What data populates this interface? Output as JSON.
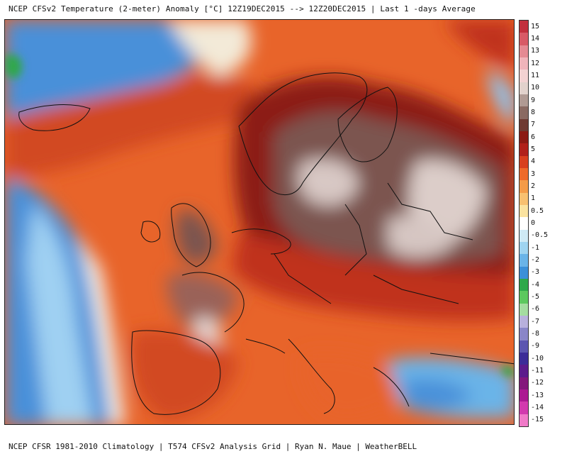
{
  "header": {
    "title": "NCEP CFSv2 Temperature (2-meter) Anomaly  [°C] 12Z19DEC2015 --> 12Z20DEC2015 | Last 1 -days Average"
  },
  "footer": {
    "credit": "NCEP CFSR 1981-2010 Climatology | T574 CFSv2 Analysis Grid | Ryan N. Maue | WeatherBELL"
  },
  "map": {
    "region": "Europe",
    "colors": {
      "ocean_cold": "#4a90d9",
      "ocean_cool": "#8cc4ef",
      "neutral": "#f6f0e6",
      "warm": "#e8642a",
      "hot": "#c0301b",
      "very_hot": "#8c1f14",
      "extreme": "#7c5550",
      "extreme_high": "#d8c8c4"
    }
  },
  "colorbar": {
    "labels": [
      "15",
      "14",
      "13",
      "12",
      "11",
      "10",
      "9",
      "8",
      "7",
      "6",
      "5",
      "4",
      "3",
      "2",
      "1",
      "0.5",
      "0",
      "-0.5",
      "-1",
      "-2",
      "-3",
      "-4",
      "-5",
      "-6",
      "-7",
      "-8",
      "-9",
      "-10",
      "-11",
      "-12",
      "-13",
      "-14",
      "-15"
    ],
    "colors": [
      "#c2303d",
      "#d85a66",
      "#e58a93",
      "#f0b4ba",
      "#f3d2d2",
      "#e2d2cc",
      "#b09a93",
      "#8a6a62",
      "#6e3a32",
      "#8c1a14",
      "#b0201a",
      "#d8401e",
      "#ee6a2a",
      "#f49b48",
      "#f8c070",
      "#fbe3a0",
      "#ffffff",
      "#cfeaf5",
      "#9fd4f0",
      "#6ab4e8",
      "#3c90d8",
      "#2ea84a",
      "#5cc85e",
      "#a4dca0",
      "#b8b0dc",
      "#8a86c8",
      "#5c56b0",
      "#3c2c98",
      "#5c1c8c",
      "#84187c",
      "#ac1a92",
      "#d23aae",
      "#f07ac8"
    ]
  }
}
